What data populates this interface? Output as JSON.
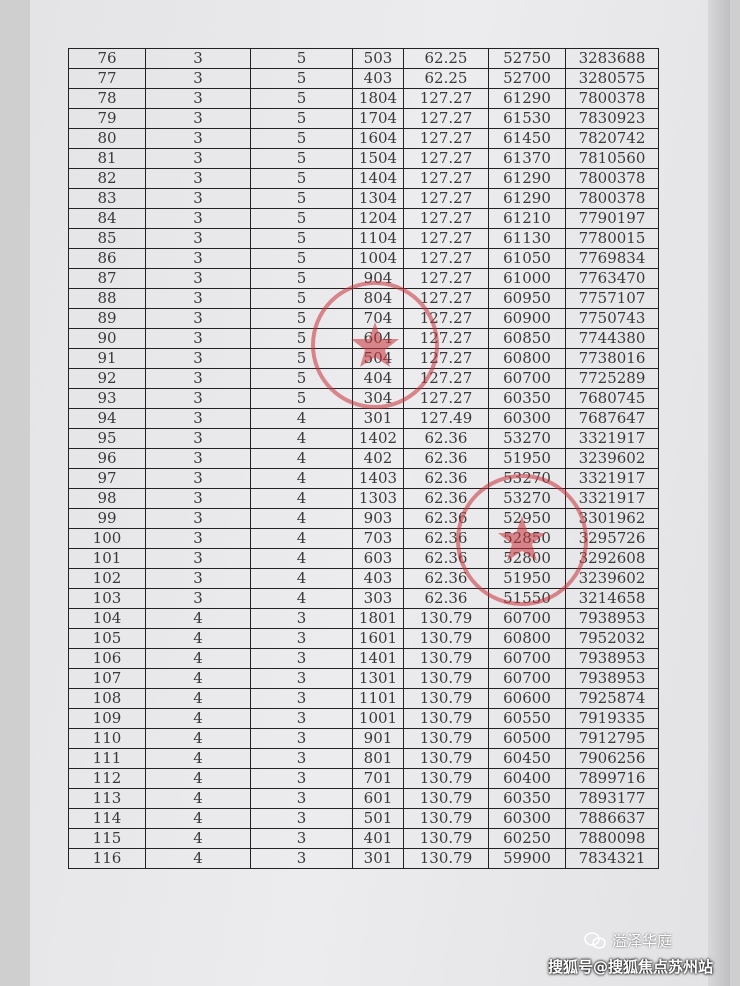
{
  "table": {
    "rows": [
      [
        "76",
        "3",
        "5",
        "503",
        "62.25",
        "52750",
        "3283688"
      ],
      [
        "77",
        "3",
        "5",
        "403",
        "62.25",
        "52700",
        "3280575"
      ],
      [
        "78",
        "3",
        "5",
        "1804",
        "127.27",
        "61290",
        "7800378"
      ],
      [
        "79",
        "3",
        "5",
        "1704",
        "127.27",
        "61530",
        "7830923"
      ],
      [
        "80",
        "3",
        "5",
        "1604",
        "127.27",
        "61450",
        "7820742"
      ],
      [
        "81",
        "3",
        "5",
        "1504",
        "127.27",
        "61370",
        "7810560"
      ],
      [
        "82",
        "3",
        "5",
        "1404",
        "127.27",
        "61290",
        "7800378"
      ],
      [
        "83",
        "3",
        "5",
        "1304",
        "127.27",
        "61290",
        "7800378"
      ],
      [
        "84",
        "3",
        "5",
        "1204",
        "127.27",
        "61210",
        "7790197"
      ],
      [
        "85",
        "3",
        "5",
        "1104",
        "127.27",
        "61130",
        "7780015"
      ],
      [
        "86",
        "3",
        "5",
        "1004",
        "127.27",
        "61050",
        "7769834"
      ],
      [
        "87",
        "3",
        "5",
        "904",
        "127.27",
        "61000",
        "7763470"
      ],
      [
        "88",
        "3",
        "5",
        "804",
        "127.27",
        "60950",
        "7757107"
      ],
      [
        "89",
        "3",
        "5",
        "704",
        "127.27",
        "60900",
        "7750743"
      ],
      [
        "90",
        "3",
        "5",
        "604",
        "127.27",
        "60850",
        "7744380"
      ],
      [
        "91",
        "3",
        "5",
        "504",
        "127.27",
        "60800",
        "7738016"
      ],
      [
        "92",
        "3",
        "5",
        "404",
        "127.27",
        "60700",
        "7725289"
      ],
      [
        "93",
        "3",
        "5",
        "304",
        "127.27",
        "60350",
        "7680745"
      ],
      [
        "94",
        "3",
        "4",
        "301",
        "127.49",
        "60300",
        "7687647"
      ],
      [
        "95",
        "3",
        "4",
        "1402",
        "62.36",
        "53270",
        "3321917"
      ],
      [
        "96",
        "3",
        "4",
        "402",
        "62.36",
        "51950",
        "3239602"
      ],
      [
        "97",
        "3",
        "4",
        "1403",
        "62.36",
        "53270",
        "3321917"
      ],
      [
        "98",
        "3",
        "4",
        "1303",
        "62.36",
        "53270",
        "3321917"
      ],
      [
        "99",
        "3",
        "4",
        "903",
        "62.36",
        "52950",
        "3301962"
      ],
      [
        "100",
        "3",
        "4",
        "703",
        "62.36",
        "52850",
        "3295726"
      ],
      [
        "101",
        "3",
        "4",
        "603",
        "62.36",
        "52800",
        "3292608"
      ],
      [
        "102",
        "3",
        "4",
        "403",
        "62.36",
        "51950",
        "3239602"
      ],
      [
        "103",
        "3",
        "4",
        "303",
        "62.36",
        "51550",
        "3214658"
      ],
      [
        "104",
        "4",
        "3",
        "1801",
        "130.79",
        "60700",
        "7938953"
      ],
      [
        "105",
        "4",
        "3",
        "1601",
        "130.79",
        "60800",
        "7952032"
      ],
      [
        "106",
        "4",
        "3",
        "1401",
        "130.79",
        "60700",
        "7938953"
      ],
      [
        "107",
        "4",
        "3",
        "1301",
        "130.79",
        "60700",
        "7938953"
      ],
      [
        "108",
        "4",
        "3",
        "1101",
        "130.79",
        "60600",
        "7925874"
      ],
      [
        "109",
        "4",
        "3",
        "1001",
        "130.79",
        "60550",
        "7919335"
      ],
      [
        "110",
        "4",
        "3",
        "901",
        "130.79",
        "60500",
        "7912795"
      ],
      [
        "111",
        "4",
        "3",
        "801",
        "130.79",
        "60450",
        "7906256"
      ],
      [
        "112",
        "4",
        "3",
        "701",
        "130.79",
        "60400",
        "7899716"
      ],
      [
        "113",
        "4",
        "3",
        "601",
        "130.79",
        "60350",
        "7893177"
      ],
      [
        "114",
        "4",
        "3",
        "501",
        "130.79",
        "60300",
        "7886637"
      ],
      [
        "115",
        "4",
        "3",
        "401",
        "130.79",
        "60250",
        "7880098"
      ],
      [
        "116",
        "4",
        "3",
        "301",
        "130.79",
        "59900",
        "7834321"
      ]
    ]
  },
  "stamps": {
    "color": "#c8323a",
    "count": 2
  },
  "watermark": {
    "account": "溢泽华庭",
    "source": "搜狐号@搜狐焦点苏州站",
    "icon": "wechat-icon"
  }
}
